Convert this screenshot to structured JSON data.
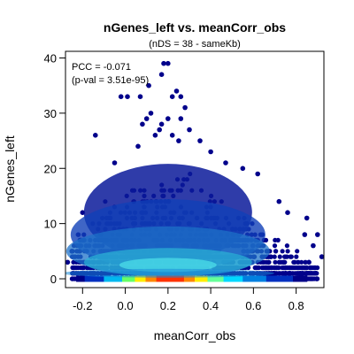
{
  "chart_data": {
    "type": "scatter",
    "title": "nGenes_left vs. meanCorr_obs",
    "subtitle": "(nDS = 38 - sameKb)",
    "xlabel": "meanCorr_obs",
    "ylabel": "nGenes_left",
    "xlim": [
      -0.28,
      0.93
    ],
    "ylim": [
      0,
      40
    ],
    "x_ticks": [
      -0.2,
      0.0,
      0.2,
      0.4,
      0.6,
      0.8
    ],
    "x_tick_labels": [
      "-0.2",
      "0.0",
      "0.2",
      "0.4",
      "0.6",
      "0.8"
    ],
    "y_ticks": [
      0,
      10,
      20,
      30,
      40
    ],
    "y_tick_labels": [
      "0",
      "10",
      "20",
      "30",
      "40"
    ],
    "grid": false,
    "legend": "none",
    "annotations": [
      "PCC = -0.071",
      "(p-val = 3.51e-95)"
    ],
    "density_rendering": "smoothScatter-like heat density along low nGenes_left, sparse dark-blue points above",
    "colors": {
      "point": "#00008b",
      "density_low": "#000080",
      "density_mid": "#00bfff",
      "density_high": "#ffff00",
      "density_peak": "#ff3300"
    },
    "outlier_points": [
      {
        "x": 0.18,
        "y": 39
      },
      {
        "x": 0.2,
        "y": 39
      },
      {
        "x": 0.17,
        "y": 37
      },
      {
        "x": 0.11,
        "y": 35
      },
      {
        "x": 0.24,
        "y": 34
      },
      {
        "x": 0.22,
        "y": 33
      },
      {
        "x": 0.26,
        "y": 33
      },
      {
        "x": -0.02,
        "y": 33
      },
      {
        "x": 0.01,
        "y": 33
      },
      {
        "x": 0.07,
        "y": 33
      },
      {
        "x": 0.28,
        "y": 31
      },
      {
        "x": 0.12,
        "y": 30
      },
      {
        "x": 0.1,
        "y": 29
      },
      {
        "x": 0.2,
        "y": 29
      },
      {
        "x": 0.26,
        "y": 29
      },
      {
        "x": 0.08,
        "y": 28
      },
      {
        "x": 0.17,
        "y": 28
      },
      {
        "x": 0.16,
        "y": 27
      },
      {
        "x": 0.3,
        "y": 27
      },
      {
        "x": 0.14,
        "y": 26
      },
      {
        "x": 0.22,
        "y": 26
      },
      {
        "x": -0.14,
        "y": 26
      },
      {
        "x": 0.25,
        "y": 25
      },
      {
        "x": 0.35,
        "y": 25
      },
      {
        "x": 0.06,
        "y": 24
      },
      {
        "x": 0.4,
        "y": 23
      },
      {
        "x": -0.05,
        "y": 21
      },
      {
        "x": 0.47,
        "y": 21
      },
      {
        "x": 0.55,
        "y": 20
      },
      {
        "x": 0.62,
        "y": 19
      },
      {
        "x": 0.72,
        "y": 14
      },
      {
        "x": 0.76,
        "y": 12
      },
      {
        "x": 0.85,
        "y": 11
      },
      {
        "x": -0.2,
        "y": 12
      },
      {
        "x": -0.25,
        "y": 5
      },
      {
        "x": -0.27,
        "y": 3
      },
      {
        "x": 0.84,
        "y": 8
      },
      {
        "x": 0.9,
        "y": 8
      },
      {
        "x": 0.88,
        "y": 6
      },
      {
        "x": 0.92,
        "y": 4
      },
      {
        "x": 0.86,
        "y": 3
      }
    ]
  }
}
